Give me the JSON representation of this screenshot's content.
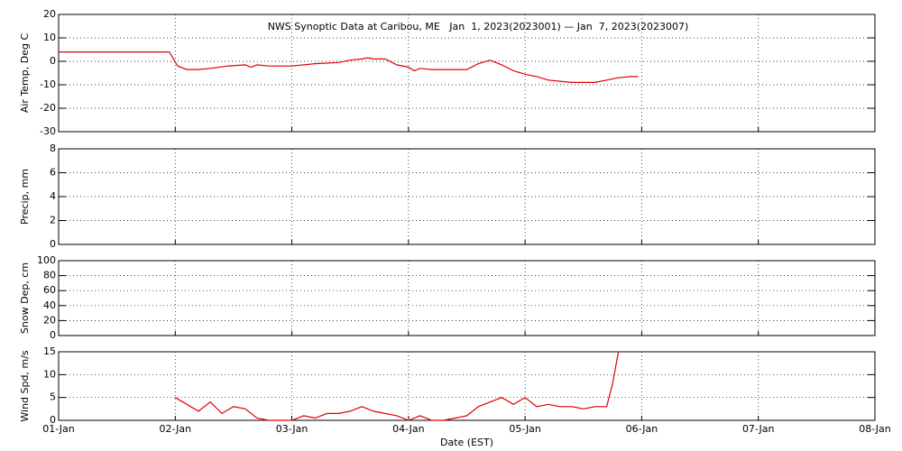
{
  "chart_data": [
    {
      "type": "line",
      "title": "NWS Synoptic Data at Caribou, ME   Jan  1, 2023(2023001) — Jan  7, 2023(2023007)",
      "ylabel": "Air Temp, Deg C",
      "xlim": [
        0,
        7
      ],
      "xticks": [
        0,
        1,
        2,
        3,
        4,
        5,
        6,
        7
      ],
      "ylim": [
        -30,
        20
      ],
      "yticks": [
        -30,
        -20,
        -10,
        0,
        10,
        20
      ],
      "grid": true,
      "series": [
        {
          "color": "#e00000",
          "x": [
            0,
            0.5,
            0.95,
            1.02,
            1.1,
            1.2,
            1.3,
            1.45,
            1.6,
            1.65,
            1.7,
            1.8,
            2.0,
            2.2,
            2.4,
            2.5,
            2.6,
            2.65,
            2.7,
            2.8,
            2.9,
            3.0,
            3.05,
            3.1,
            3.2,
            3.3,
            3.5,
            3.6,
            3.7,
            3.8,
            3.9,
            4.0,
            4.1,
            4.2,
            4.3,
            4.4,
            4.6,
            4.7,
            4.8,
            4.9,
            4.97
          ],
          "values": [
            4,
            4,
            4,
            -2,
            -3.5,
            -3.5,
            -3,
            -2,
            -1.5,
            -2.5,
            -1.5,
            -2,
            -2,
            -1,
            -0.5,
            0.5,
            1,
            1.5,
            1,
            1,
            -1.5,
            -2.5,
            -4,
            -3,
            -3.5,
            -3.5,
            -3.5,
            -1,
            0.5,
            -1.5,
            -4,
            -5.5,
            -6.5,
            -8,
            -8.5,
            -9,
            -9,
            -8,
            -7,
            -6.5,
            -6.5
          ]
        }
      ]
    },
    {
      "type": "line",
      "ylabel": "Precip, mm",
      "xlim": [
        0,
        7
      ],
      "xticks": [
        0,
        1,
        2,
        3,
        4,
        5,
        6,
        7
      ],
      "ylim": [
        0,
        8
      ],
      "yticks": [
        0,
        2,
        4,
        6,
        8
      ],
      "grid": true,
      "series": []
    },
    {
      "type": "line",
      "ylabel": "Snow Dep, cm",
      "xlim": [
        0,
        7
      ],
      "xticks": [
        0,
        1,
        2,
        3,
        4,
        5,
        6,
        7
      ],
      "ylim": [
        0,
        100
      ],
      "yticks": [
        0,
        20,
        40,
        60,
        80,
        100
      ],
      "grid": true,
      "series": []
    },
    {
      "type": "line",
      "ylabel": "Wind Spd, m/s",
      "xlabel": "Date (EST)",
      "xlim": [
        0,
        7
      ],
      "xticks": [
        {
          "value": 0,
          "label": "01-Jan"
        },
        {
          "value": 1,
          "label": "02-Jan"
        },
        {
          "value": 2,
          "label": "03-Jan"
        },
        {
          "value": 3,
          "label": "04-Jan"
        },
        {
          "value": 4,
          "label": "05-Jan"
        },
        {
          "value": 5,
          "label": "06-Jan"
        },
        {
          "value": 6,
          "label": "07-Jan"
        },
        {
          "value": 7,
          "label": "08-Jan"
        }
      ],
      "ylim": [
        0,
        15
      ],
      "yticks": [
        0,
        5,
        10,
        15
      ],
      "grid": true,
      "series": [
        {
          "color": "#e00000",
          "x": [
            1.0,
            1.1,
            1.2,
            1.3,
            1.4,
            1.5,
            1.6,
            1.7,
            1.8,
            1.9,
            2.0,
            2.1,
            2.2,
            2.3,
            2.4,
            2.5,
            2.6,
            2.7,
            2.8,
            2.9,
            3.0,
            3.1,
            3.2,
            3.3,
            3.4,
            3.5,
            3.6,
            3.7,
            3.8,
            3.9,
            4.0,
            4.1,
            4.2,
            4.3,
            4.4,
            4.5,
            4.6,
            4.7,
            4.75,
            4.8
          ],
          "values": [
            5,
            3.5,
            2,
            4,
            1.5,
            3,
            2.5,
            0.5,
            0,
            0,
            0,
            1,
            0.5,
            1.5,
            1.5,
            2,
            3,
            2,
            1.5,
            1,
            0,
            1,
            0,
            0,
            0.5,
            1,
            3,
            4,
            5,
            3.5,
            5,
            3,
            3.5,
            3,
            3,
            2.5,
            3,
            3,
            8,
            15
          ]
        }
      ]
    }
  ]
}
